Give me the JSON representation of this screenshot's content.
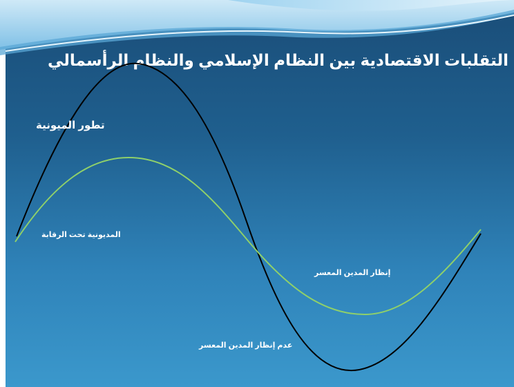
{
  "slide": {
    "title": "التقلبات الاقتصادية بين النظام الإسلامي والنظام الرأسمالي",
    "colors": {
      "background_top": "#1a4d78",
      "background_bottom": "#3b98cc",
      "black_curve": "#000000",
      "green_curve": "#8fd06a",
      "text": "#ffffff"
    }
  },
  "diagram": {
    "labels": {
      "debt_evolution": "تطور الميونية",
      "controlled_debt": "المديونية تحت الرقابة",
      "grace_to_insolvent": "إنظار المدين المعسر",
      "no_grace_to_insolvent": "عدم إنظار المدين المعسر"
    }
  }
}
